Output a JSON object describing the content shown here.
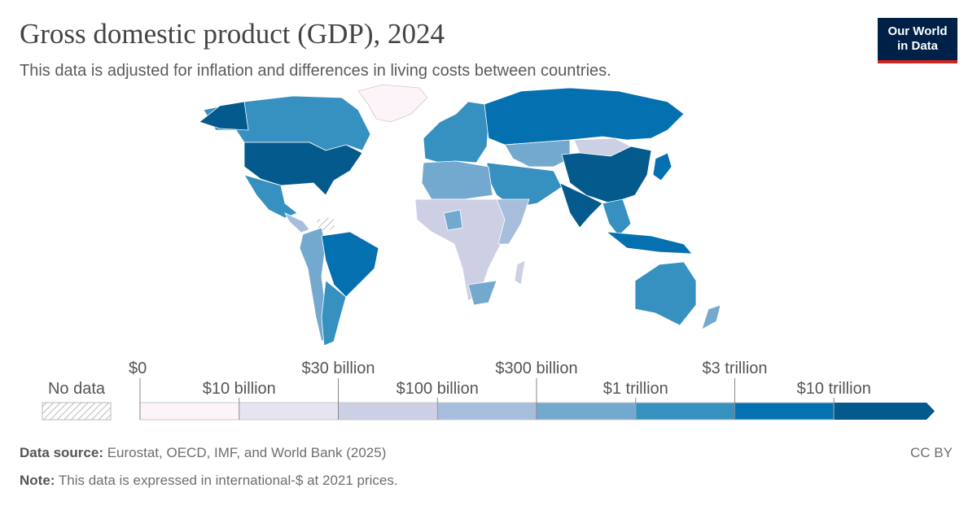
{
  "header": {
    "title": "Gross domestic product (GDP), 2024",
    "subtitle": "This data is adjusted for inflation and differences in living costs between countries.",
    "logo": [
      "Our World",
      "in Data"
    ]
  },
  "legend": {
    "no_data": "No data",
    "ticks": [
      "$0",
      "$10 billion",
      "$30 billion",
      "$100 billion",
      "$300 billion",
      "$1 trillion",
      "$3 trillion",
      "$10 trillion"
    ],
    "colors": [
      "#fdf4fa",
      "#e7e4f1",
      "#cdd0e5",
      "#a6bddb",
      "#74a9cf",
      "#3690c0",
      "#0570b0",
      "#045a8d"
    ]
  },
  "footer": {
    "source_label": "Data source:",
    "source": "Eurostat, OECD, IMF, and World Bank (2025)",
    "note_label": "Note:",
    "note": "This data is expressed in international-$ at 2021 prices.",
    "license": "CC BY"
  }
}
